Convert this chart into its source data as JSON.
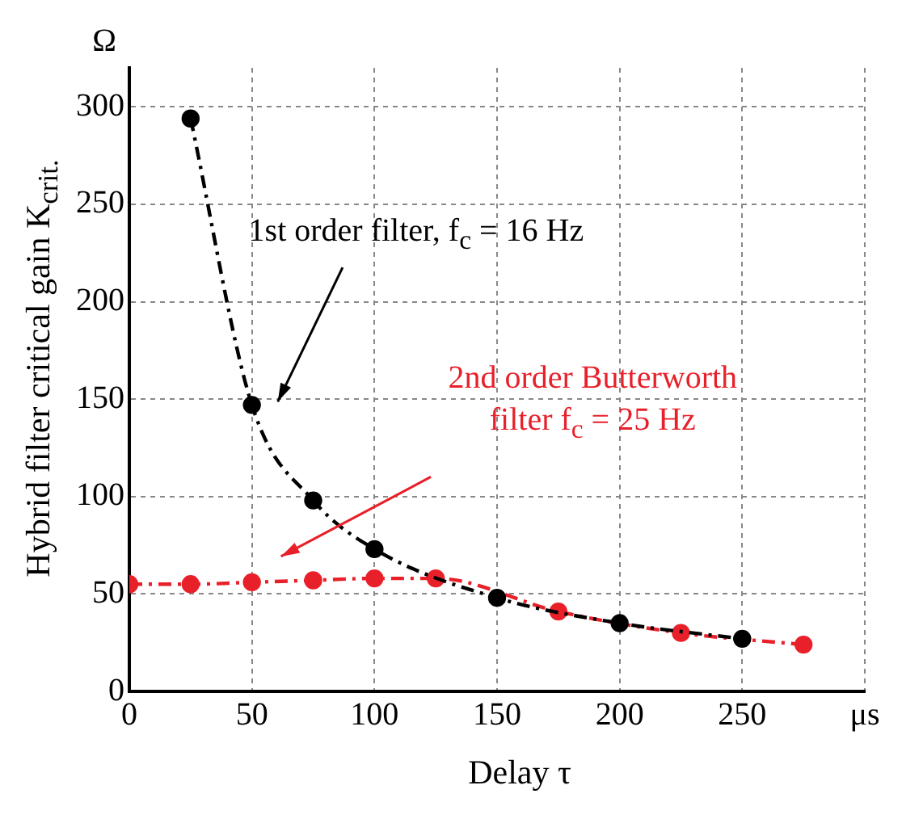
{
  "chart_data": {
    "type": "line",
    "xlabel": "Delay τ",
    "ylabel": "Hybrid filter critical gain K$_{crit.}$",
    "x": [
      25,
      50,
      75,
      100,
      150,
      200,
      250
    ],
    "series": [
      {
        "name": "1st order filter, f$_{c}$ = 16 Hz",
        "color": "#000000",
        "values": [
          294,
          147,
          98,
          73,
          48,
          35,
          27
        ],
        "line_style": "dashed"
      },
      {
        "name": "2nd order Butterworth filter f$_{c}$ = 25 Hz",
        "color": "#e8202a",
        "x": [
          0,
          25,
          50,
          75,
          100,
          125,
          175,
          225,
          275
        ],
        "values": [
          55,
          55,
          56,
          57,
          58,
          58,
          41,
          30,
          24
        ],
        "line_style": "dashed"
      }
    ],
    "annotations": [
      "Ω"
    ],
    "xlim": [
      0,
      300
    ],
    "xticks": [
      0,
      50,
      100,
      150,
      200,
      250,
      {
        "value": 300,
        "label": "μs"
      }
    ],
    "ylim": [
      0,
      320
    ],
    "yticks": [
      0,
      50,
      100,
      150,
      200,
      250,
      300
    ],
    "grid": true,
    "marker": "circle"
  }
}
